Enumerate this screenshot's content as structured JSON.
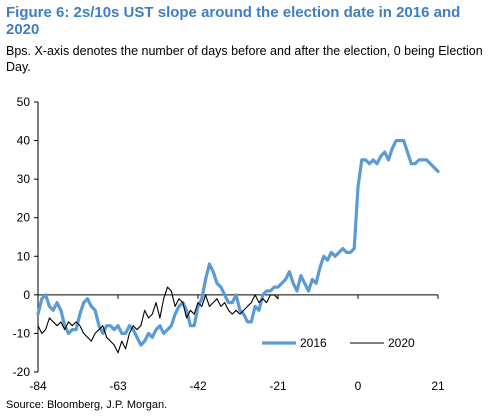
{
  "title": "Figure 6: 2s/10s UST slope around the election date in 2016 and 2020",
  "subtitle": "Bps. X-axis denotes the number of days before and after the election, 0 being Election Day.",
  "source": "Source: Bloomberg, J.P. Morgan.",
  "colors": {
    "series_2016": "#5b9bd5",
    "series_2020": "#000000",
    "title": "#3d7fc0"
  },
  "chart_data": {
    "type": "line",
    "title": "Figure 6: 2s/10s UST slope around the election date in 2016 and 2020",
    "xlabel": "",
    "ylabel": "",
    "xlim": [
      -84,
      21
    ],
    "ylim": [
      -20,
      50
    ],
    "xticks": [
      -84,
      -63,
      -42,
      -21,
      0,
      21
    ],
    "yticks": [
      -20,
      -10,
      0,
      10,
      20,
      30,
      40,
      50
    ],
    "grid": false,
    "legend_position": "bottom-right",
    "series": [
      {
        "name": "2016",
        "color": "#5b9bd5",
        "x": [
          -84,
          -83,
          -82,
          -81,
          -80,
          -79,
          -78,
          -77,
          -76,
          -75,
          -74,
          -73,
          -72,
          -71,
          -70,
          -69,
          -68,
          -67,
          -66,
          -65,
          -64,
          -63,
          -62,
          -61,
          -60,
          -59,
          -58,
          -57,
          -56,
          -55,
          -54,
          -53,
          -52,
          -51,
          -50,
          -49,
          -48,
          -47,
          -46,
          -45,
          -44,
          -43,
          -42,
          -41,
          -40,
          -39,
          -38,
          -37,
          -36,
          -35,
          -34,
          -33,
          -32,
          -31,
          -30,
          -29,
          -28,
          -27,
          -26,
          -25,
          -24,
          -23,
          -22,
          -21,
          -20,
          -19,
          -18,
          -17,
          -16,
          -15,
          -14,
          -13,
          -12,
          -11,
          -10,
          -9,
          -8,
          -7,
          -6,
          -5,
          -4,
          -3,
          -2,
          -1,
          0,
          1,
          2,
          3,
          4,
          5,
          6,
          7,
          8,
          9,
          10,
          11,
          12,
          13,
          14,
          15,
          16,
          17,
          18,
          19,
          20,
          21
        ],
        "y": [
          -5,
          -1,
          0,
          -3,
          -4,
          -2,
          -4,
          -8,
          -10,
          -9,
          -9,
          -5,
          -2,
          -1,
          -3,
          -4,
          -8,
          -10,
          -8,
          -8,
          -9,
          -8,
          -10,
          -10,
          -8,
          -9,
          -11,
          -13,
          -12,
          -10,
          -11,
          -9,
          -8,
          -10,
          -9,
          -8,
          -5,
          -3,
          -2,
          -4,
          -8,
          -8,
          -3,
          -1,
          4,
          8,
          6,
          3,
          2,
          0,
          -2,
          -2,
          0,
          -4,
          -5,
          -7,
          -7,
          -3,
          -4,
          0,
          1,
          1,
          2,
          2,
          3,
          4,
          6,
          3,
          1,
          5,
          3,
          1,
          4,
          3,
          7,
          10,
          9,
          11,
          10,
          11,
          12,
          11,
          11,
          12,
          28,
          35,
          35,
          34,
          35,
          34,
          36,
          37,
          35,
          38,
          40,
          40,
          40,
          37,
          34,
          34,
          35,
          35,
          35,
          34,
          33,
          32
        ]
      },
      {
        "name": "2020",
        "color": "#000000",
        "x": [
          -84,
          -83,
          -82,
          -81,
          -80,
          -79,
          -78,
          -77,
          -76,
          -75,
          -74,
          -73,
          -72,
          -71,
          -70,
          -69,
          -68,
          -67,
          -66,
          -65,
          -64,
          -63,
          -62,
          -61,
          -60,
          -59,
          -58,
          -57,
          -56,
          -55,
          -54,
          -53,
          -52,
          -51,
          -50,
          -49,
          -48,
          -47,
          -46,
          -45,
          -44,
          -43,
          -42,
          -41,
          -40,
          -39,
          -38,
          -37,
          -36,
          -35,
          -34,
          -33,
          -32,
          -31,
          -30,
          -29,
          -28,
          -27,
          -26,
          -25,
          -24,
          -23,
          -22,
          -21
        ],
        "y": [
          -8,
          -10,
          -9,
          -6,
          -7,
          -8,
          -7,
          -9,
          -7,
          -8,
          -7,
          -8,
          -10,
          -11,
          -12,
          -10,
          -9,
          -8,
          -11,
          -12,
          -13,
          -15,
          -12,
          -14,
          -10,
          -8,
          -9,
          -8,
          -4,
          -6,
          -5,
          -2,
          -6,
          -1,
          2,
          1,
          -3,
          -1,
          -2,
          -6,
          -4,
          -5,
          -2,
          -3,
          0,
          -3,
          -2,
          -1,
          -3,
          -2,
          -4,
          -5,
          -4,
          -5,
          -4,
          -3,
          -2,
          0,
          -2,
          -1,
          -2,
          0,
          0,
          -1
        ]
      }
    ]
  }
}
